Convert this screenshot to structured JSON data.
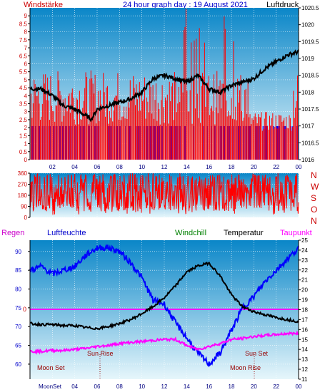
{
  "header": {
    "left_label": "Windstärke",
    "title": "24 hour graph day : 19 August 2021",
    "right_label": "Luftdruck"
  },
  "colors": {
    "wind": "#ff0000",
    "gust": "#0000ff",
    "pressure": "#000000",
    "humidity": "#0000ff",
    "temperature": "#000000",
    "dewpoint": "#ff00ff",
    "zero_line": "#ff00ff",
    "grid": "#ffffff",
    "plot_bg_top": "#0a86c8",
    "plot_bg_bottom": "#e6f6fb",
    "label_red": "#cc0000",
    "windchill": "#008000",
    "regen": "#cc00cc",
    "taupunkt": "#ff00ff"
  },
  "panel3_header": {
    "regen": "Regen",
    "luftfeuchte": "Luftfeuchte",
    "windchill": "Windchill",
    "temperatur": "Temperatur",
    "taupunkt": "Taupunkt"
  },
  "direction_letters": [
    "N",
    "W",
    "S",
    "O",
    "N"
  ],
  "annotations": {
    "sun_rise": "Sun Rise",
    "sun_set": "Sun Set",
    "moon_set": "Moon Set",
    "moon_rise": "Moon Rise",
    "moon_set_axis": "MoonSet"
  },
  "chart_data": [
    {
      "type": "bar",
      "title": "24 hour graph day : 19 August 2021",
      "ylabel": "Windstärke",
      "y2label": "Luftdruck",
      "x_ticks": [
        "02",
        "04",
        "06",
        "08",
        "10",
        "12",
        "14",
        "16",
        "18",
        "20",
        "22",
        "00"
      ],
      "ylim": [
        0,
        9.5
      ],
      "y_ticks": [
        "0",
        "0.5",
        "1",
        "1.5",
        "2",
        "2.5",
        "3",
        "3.5",
        "4",
        "4.5",
        "5",
        "5.5",
        "6",
        "6.5",
        "7",
        "7.5",
        "8",
        "8.5",
        "9"
      ],
      "y2lim": [
        1016,
        1020.5
      ],
      "y2_ticks": [
        "1016",
        "1016.5",
        "1017",
        "1017.5",
        "1018",
        "1018.5",
        "1019",
        "1019.5",
        "1020",
        "1020.5"
      ],
      "series": [
        {
          "name": "Luftdruck",
          "type": "line",
          "x": [
            0,
            1,
            2,
            3,
            4,
            5,
            5.5,
            6,
            7,
            8,
            9,
            10,
            11,
            12,
            13,
            14,
            15,
            16,
            17,
            18,
            19,
            20,
            21,
            22,
            23,
            24
          ],
          "y": [
            1018.1,
            1018.1,
            1017.9,
            1017.6,
            1017.5,
            1017.3,
            1017.2,
            1017.5,
            1017.6,
            1017.7,
            1017.8,
            1018.0,
            1018.4,
            1018.5,
            1018.4,
            1018.3,
            1018.5,
            1018.1,
            1018.0,
            1018.2,
            1018.3,
            1018.4,
            1018.7,
            1018.9,
            1019.1,
            1019.2
          ]
        }
      ]
    },
    {
      "type": "line",
      "y_ticks": [
        "0",
        "90",
        "180",
        "270",
        "360"
      ],
      "ylim": [
        0,
        360
      ],
      "x_ticks": [
        "02",
        "04",
        "06",
        "08",
        "10",
        "12",
        "14",
        "16",
        "18",
        "20",
        "22",
        "00"
      ]
    },
    {
      "type": "line",
      "ylabel": "Luftfeuchte",
      "y2label": "Temperatur",
      "x_ticks": [
        "02",
        "04",
        "06",
        "08",
        "10",
        "12",
        "14",
        "16",
        "18",
        "20",
        "22",
        "00"
      ],
      "ylim": [
        56,
        93
      ],
      "y_ticks": [
        "60",
        "65",
        "70",
        "75",
        "80",
        "85",
        "90"
      ],
      "y2lim": [
        11,
        25
      ],
      "y2_ticks": [
        "11",
        "12",
        "13",
        "14",
        "15",
        "16",
        "17",
        "18",
        "19",
        "20",
        "21",
        "22",
        "23",
        "24",
        "25"
      ],
      "series": [
        {
          "name": "Luftfeuchte",
          "type": "line",
          "x": [
            0,
            1,
            2,
            3,
            4,
            5,
            6,
            7,
            8,
            9,
            10,
            11,
            12,
            13,
            14,
            15,
            16,
            17,
            18,
            19,
            20,
            21,
            22,
            23,
            24
          ],
          "y": [
            85,
            86,
            84,
            85,
            86,
            89,
            91,
            91,
            90,
            87,
            83,
            77,
            76,
            71,
            67,
            63,
            60,
            63,
            69,
            75,
            78,
            82,
            85,
            88,
            91
          ]
        },
        {
          "name": "Temperatur",
          "type": "line",
          "x": [
            0,
            1,
            2,
            3,
            4,
            5,
            6,
            7,
            8,
            9,
            10,
            11,
            12,
            13,
            14,
            15,
            16,
            17,
            18,
            19,
            20,
            21,
            22,
            23,
            24
          ],
          "y": [
            16.6,
            16.5,
            16.5,
            16.4,
            16.4,
            16.2,
            16.1,
            16.3,
            16.6,
            17.0,
            17.6,
            18.3,
            19.2,
            20.4,
            21.8,
            22.4,
            22.7,
            21.4,
            19.5,
            18.3,
            17.8,
            17.5,
            17.2,
            17.0,
            16.8
          ]
        },
        {
          "name": "Taupunkt",
          "type": "line",
          "x": [
            0,
            1,
            2,
            3,
            4,
            5,
            6,
            7,
            8,
            9,
            10,
            11,
            12,
            13,
            14,
            15,
            16,
            17,
            18,
            19,
            20,
            21,
            22,
            23,
            24
          ],
          "y": [
            13.8,
            13.8,
            13.9,
            13.9,
            14.0,
            14.1,
            14.3,
            14.4,
            14.6,
            14.7,
            14.8,
            14.9,
            15.0,
            15.0,
            14.4,
            14.0,
            14.3,
            14.6,
            15.0,
            15.1,
            15.3,
            15.4,
            15.5,
            15.6,
            15.6
          ]
        }
      ]
    }
  ]
}
